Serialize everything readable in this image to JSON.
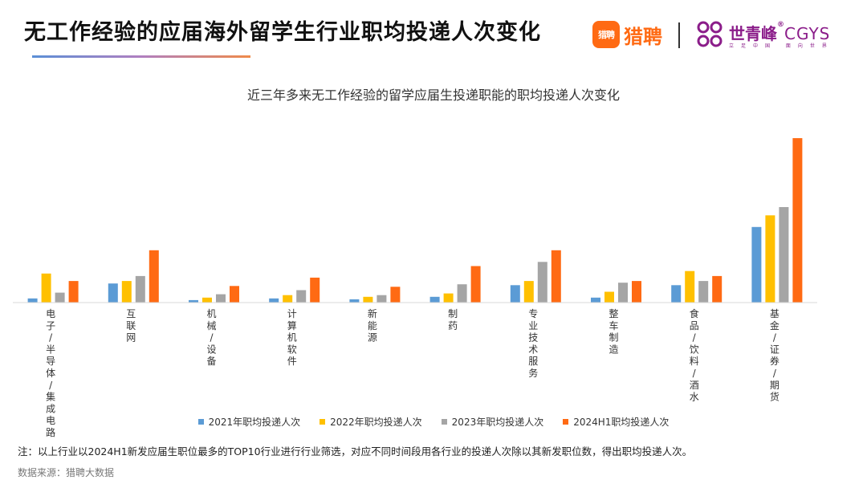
{
  "header": {
    "title": "无工作经验的应届海外留学生行业职均投递人次变化",
    "logo_liepin_icon": "猎聘",
    "logo_liepin_text": "猎聘",
    "logo_sqf_name": "世青峰",
    "logo_sqf_en": "CGYS",
    "logo_sqf_reg": "®",
    "logo_sqf_tagline": "立足中国 面向世界"
  },
  "chart_data": {
    "type": "bar",
    "title": "近三年多来无工作经验的留学应届生投递职能的职均投递人次变化",
    "xlabel": "",
    "ylabel": "",
    "categories": [
      "电子/半导体/集成电路",
      "互联网",
      "机械/设备",
      "计算机软件",
      "新能源",
      "制药",
      "专业技术服务",
      "整车制造",
      "食品/饮料/酒水",
      "基金/证券/期货"
    ],
    "series": [
      {
        "name": "2021年职均投递人次",
        "color": "#5b9bd5",
        "values": [
          2.5,
          11.5,
          1.5,
          2.5,
          2,
          3.5,
          10.5,
          3,
          10.5,
          45.5
        ]
      },
      {
        "name": "2022年职均投递人次",
        "color": "#ffc000",
        "values": [
          17.5,
          13,
          3,
          4.5,
          3.5,
          5.5,
          13,
          6.5,
          19,
          52.5
        ]
      },
      {
        "name": "2023年职均投递人次",
        "color": "#a5a5a5",
        "values": [
          6,
          16,
          5,
          7.5,
          4.5,
          11,
          24.5,
          12,
          13,
          57.5
        ]
      },
      {
        "name": "2024H1职均投递人次",
        "color": "#ff6a13",
        "values": [
          13,
          31.5,
          10,
          15,
          9.5,
          22,
          31.5,
          13,
          16,
          99
        ]
      }
    ],
    "ylim": [
      0,
      100
    ],
    "grid": false,
    "legend_position": "bottom"
  },
  "footer": {
    "note": "注：以上行业以2024H1新发应届生职位最多的TOP10行业进行行业筛选，对应不同时间段用各行业的投递人次除以其新发职位数，得出职均投递人次。",
    "source": "数据来源：猎聘大数据"
  }
}
